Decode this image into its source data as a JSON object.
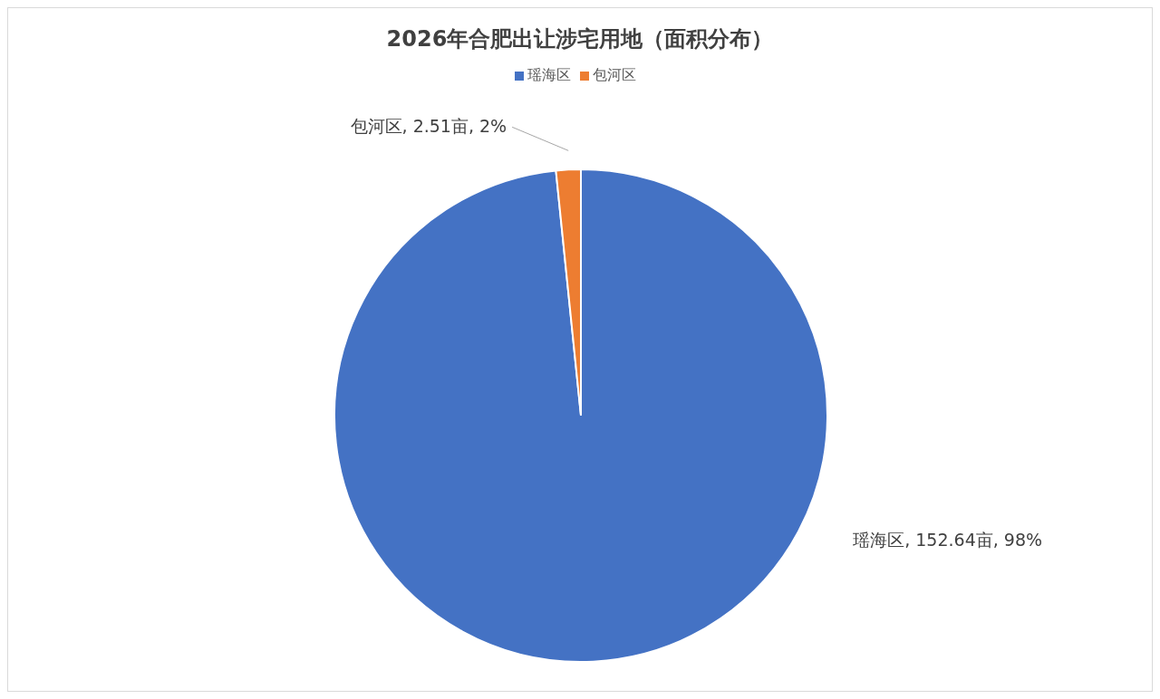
{
  "chart_data": {
    "type": "pie",
    "title": "2026年合肥出让涉宅用地（面积分布）",
    "categories": [
      "瑶海区",
      "包河区"
    ],
    "values": [
      152.64,
      2.51
    ],
    "colors": [
      "#4472c4",
      "#ed7d31"
    ],
    "value_labels": [
      "瑶海区, 152.64亩, 98%",
      "包河区, 2.51亩, 2%"
    ],
    "legend": "top"
  }
}
